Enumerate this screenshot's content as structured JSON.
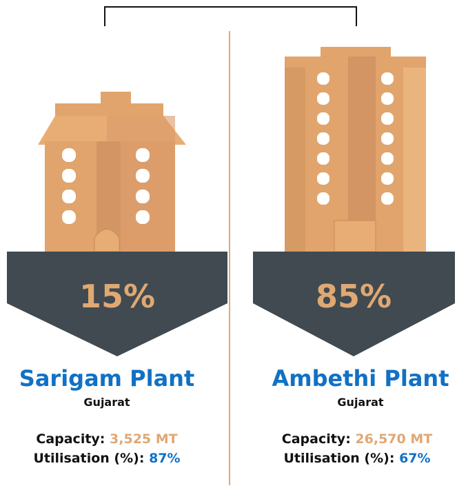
{
  "plants": [
    {
      "share": "15%",
      "name": "Sarigam Plant",
      "state": "Gujarat",
      "capacity_label": "Capacity:",
      "capacity": "3,525 MT",
      "utilisation_label": "Utilisation (%):",
      "utilisation": "87%"
    },
    {
      "share": "85%",
      "name": "Ambethi Plant",
      "state": "Gujarat",
      "capacity_label": "Capacity:",
      "capacity": "26,570 MT",
      "utilisation_label": "Utilisation (%):",
      "utilisation": "67%"
    }
  ]
}
